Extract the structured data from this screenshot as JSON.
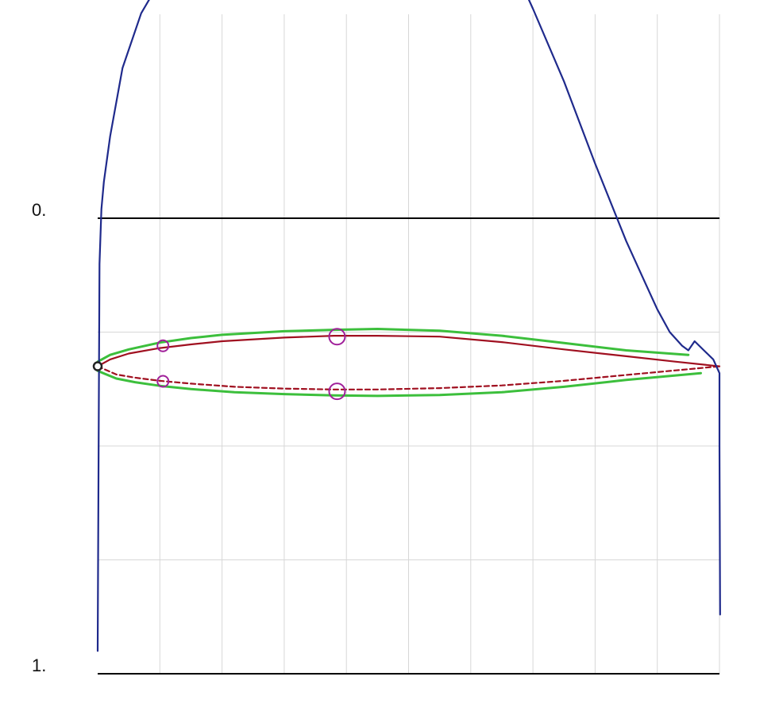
{
  "chart_data": {
    "type": "line",
    "y_axis": {
      "inverted": true,
      "tick_labels": [
        "0.",
        "1."
      ]
    },
    "x_axis": {
      "range": [
        0,
        1
      ]
    },
    "grid": true,
    "colors": {
      "grid": "#d7d7d7",
      "axis": "#000000",
      "cp": "#1f2a8c",
      "boundary_layer": "#3cbf3c",
      "airfoil": "#a01020",
      "control_points": "#a0209a",
      "leading_edge": "#222222"
    },
    "series": [
      {
        "key": "cp",
        "x": [
          0.0,
          0.0015,
          0.003,
          0.006,
          0.01,
          0.02,
          0.04,
          0.07,
          0.1,
          0.13,
          0.16,
          0.2,
          0.25,
          0.3,
          0.35,
          0.4,
          0.45,
          0.5,
          0.55,
          0.585,
          0.6,
          0.615,
          0.65,
          0.7,
          0.75,
          0.8,
          0.85,
          0.88,
          0.9,
          0.92,
          0.94,
          0.95,
          0.96,
          0.975,
          0.99,
          1.0,
          1.0,
          1.001
        ],
        "y": [
          0.95,
          0.5,
          0.1,
          -0.02,
          -0.08,
          -0.18,
          -0.33,
          -0.45,
          -0.52,
          -0.56,
          -0.6,
          -0.64,
          -0.67,
          -0.69,
          -0.71,
          -0.72,
          -0.73,
          -0.74,
          -0.76,
          -0.78,
          -0.77,
          -0.72,
          -0.61,
          -0.46,
          -0.3,
          -0.12,
          0.05,
          0.14,
          0.2,
          0.25,
          0.28,
          0.29,
          0.27,
          0.29,
          0.31,
          0.34,
          0.5,
          0.87
        ]
      },
      {
        "key": "upper_surface",
        "x": [
          0.0,
          0.02,
          0.05,
          0.1,
          0.15,
          0.2,
          0.3,
          0.38,
          0.45,
          0.55,
          0.65,
          0.75,
          0.85,
          0.93,
          1.0
        ],
        "y": [
          0.325,
          0.31,
          0.297,
          0.285,
          0.277,
          0.27,
          0.262,
          0.258,
          0.258,
          0.26,
          0.272,
          0.288,
          0.303,
          0.315,
          0.325
        ]
      },
      {
        "key": "lower_surface",
        "x": [
          0.0,
          0.03,
          0.06,
          0.1,
          0.15,
          0.22,
          0.3,
          0.38,
          0.45,
          0.55,
          0.65,
          0.75,
          0.85,
          0.93,
          1.0
        ],
        "y": [
          0.325,
          0.343,
          0.35,
          0.357,
          0.363,
          0.37,
          0.374,
          0.376,
          0.376,
          0.373,
          0.367,
          0.357,
          0.344,
          0.334,
          0.325
        ]
      },
      {
        "key": "upper_boundary_layer",
        "x": [
          0.0,
          0.02,
          0.05,
          0.1,
          0.15,
          0.2,
          0.3,
          0.38,
          0.45,
          0.55,
          0.65,
          0.75,
          0.85,
          0.95
        ],
        "y": [
          0.315,
          0.3,
          0.288,
          0.273,
          0.263,
          0.256,
          0.248,
          0.245,
          0.243,
          0.247,
          0.258,
          0.274,
          0.29,
          0.3
        ]
      },
      {
        "key": "lower_boundary_layer",
        "x": [
          0.0,
          0.03,
          0.06,
          0.1,
          0.15,
          0.22,
          0.3,
          0.38,
          0.45,
          0.55,
          0.65,
          0.75,
          0.85,
          0.97
        ],
        "y": [
          0.335,
          0.352,
          0.36,
          0.368,
          0.375,
          0.382,
          0.386,
          0.389,
          0.39,
          0.388,
          0.382,
          0.37,
          0.355,
          0.34
        ]
      }
    ],
    "control_points": [
      {
        "x": 0.105,
        "y": 0.28,
        "size": "small"
      },
      {
        "x": 0.105,
        "y": 0.358,
        "size": "small"
      },
      {
        "x": 0.385,
        "y": 0.26,
        "size": "large"
      },
      {
        "x": 0.385,
        "y": 0.38,
        "size": "large"
      }
    ],
    "leading_edge_point": {
      "x": 0.0,
      "y": 0.325
    }
  }
}
